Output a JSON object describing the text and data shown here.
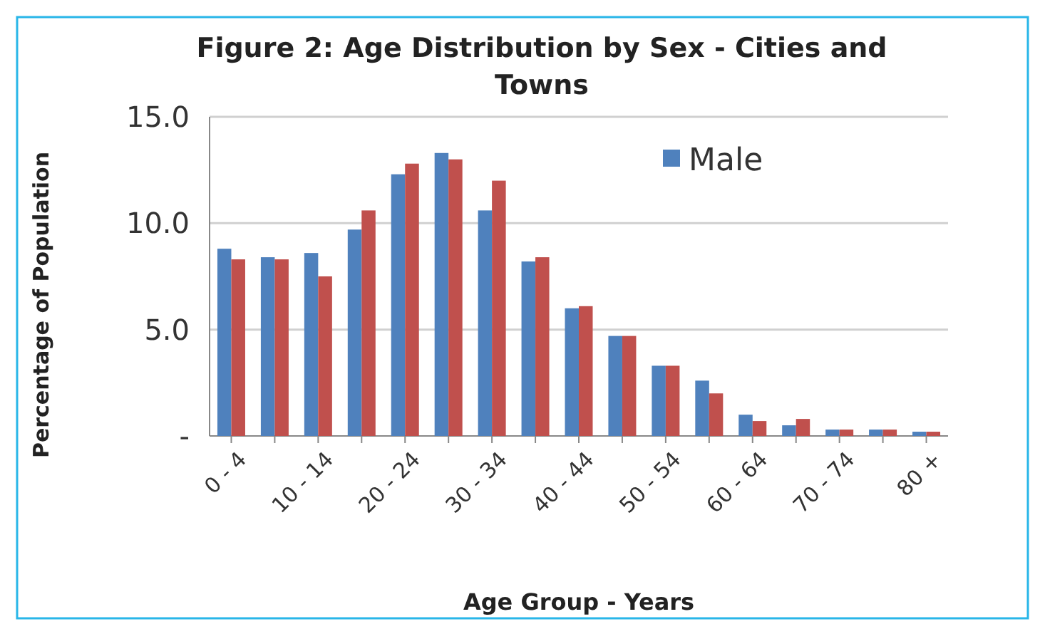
{
  "chart_data": {
    "type": "bar",
    "title": "Figure 2: Age Distribution by Sex - Cities and Towns",
    "xlabel": "Age Group - Years",
    "ylabel": "Percentage of Population",
    "categories": [
      "0 - 4",
      null,
      "10 - 14",
      null,
      "20 - 24",
      null,
      "30 - 34",
      null,
      "40 - 44",
      null,
      "50 - 54",
      null,
      "60 - 64",
      null,
      "70 - 74",
      null,
      "80 +"
    ],
    "series": [
      {
        "name": "Male",
        "color": "#4f81bd",
        "values": [
          8.8,
          8.4,
          8.6,
          9.7,
          12.3,
          13.3,
          10.6,
          8.2,
          6.0,
          4.7,
          3.3,
          2.6,
          1.0,
          0.5,
          0.3,
          0.3,
          0.2
        ]
      },
      {
        "color": "#c0504d",
        "values": [
          8.3,
          8.3,
          7.5,
          10.6,
          12.8,
          13.0,
          12.0,
          8.4,
          6.1,
          4.7,
          3.3,
          2.0,
          0.7,
          0.8,
          0.3,
          0.3,
          0.2
        ]
      }
    ],
    "ylim": [
      0,
      15
    ],
    "yticks": [
      {
        "value": 0,
        "label": "-"
      },
      {
        "value": 5,
        "label": "5.0"
      },
      {
        "value": 10,
        "label": "10.0"
      },
      {
        "value": 15,
        "label": "15.0"
      }
    ],
    "grid": "y",
    "legend": "top right"
  }
}
